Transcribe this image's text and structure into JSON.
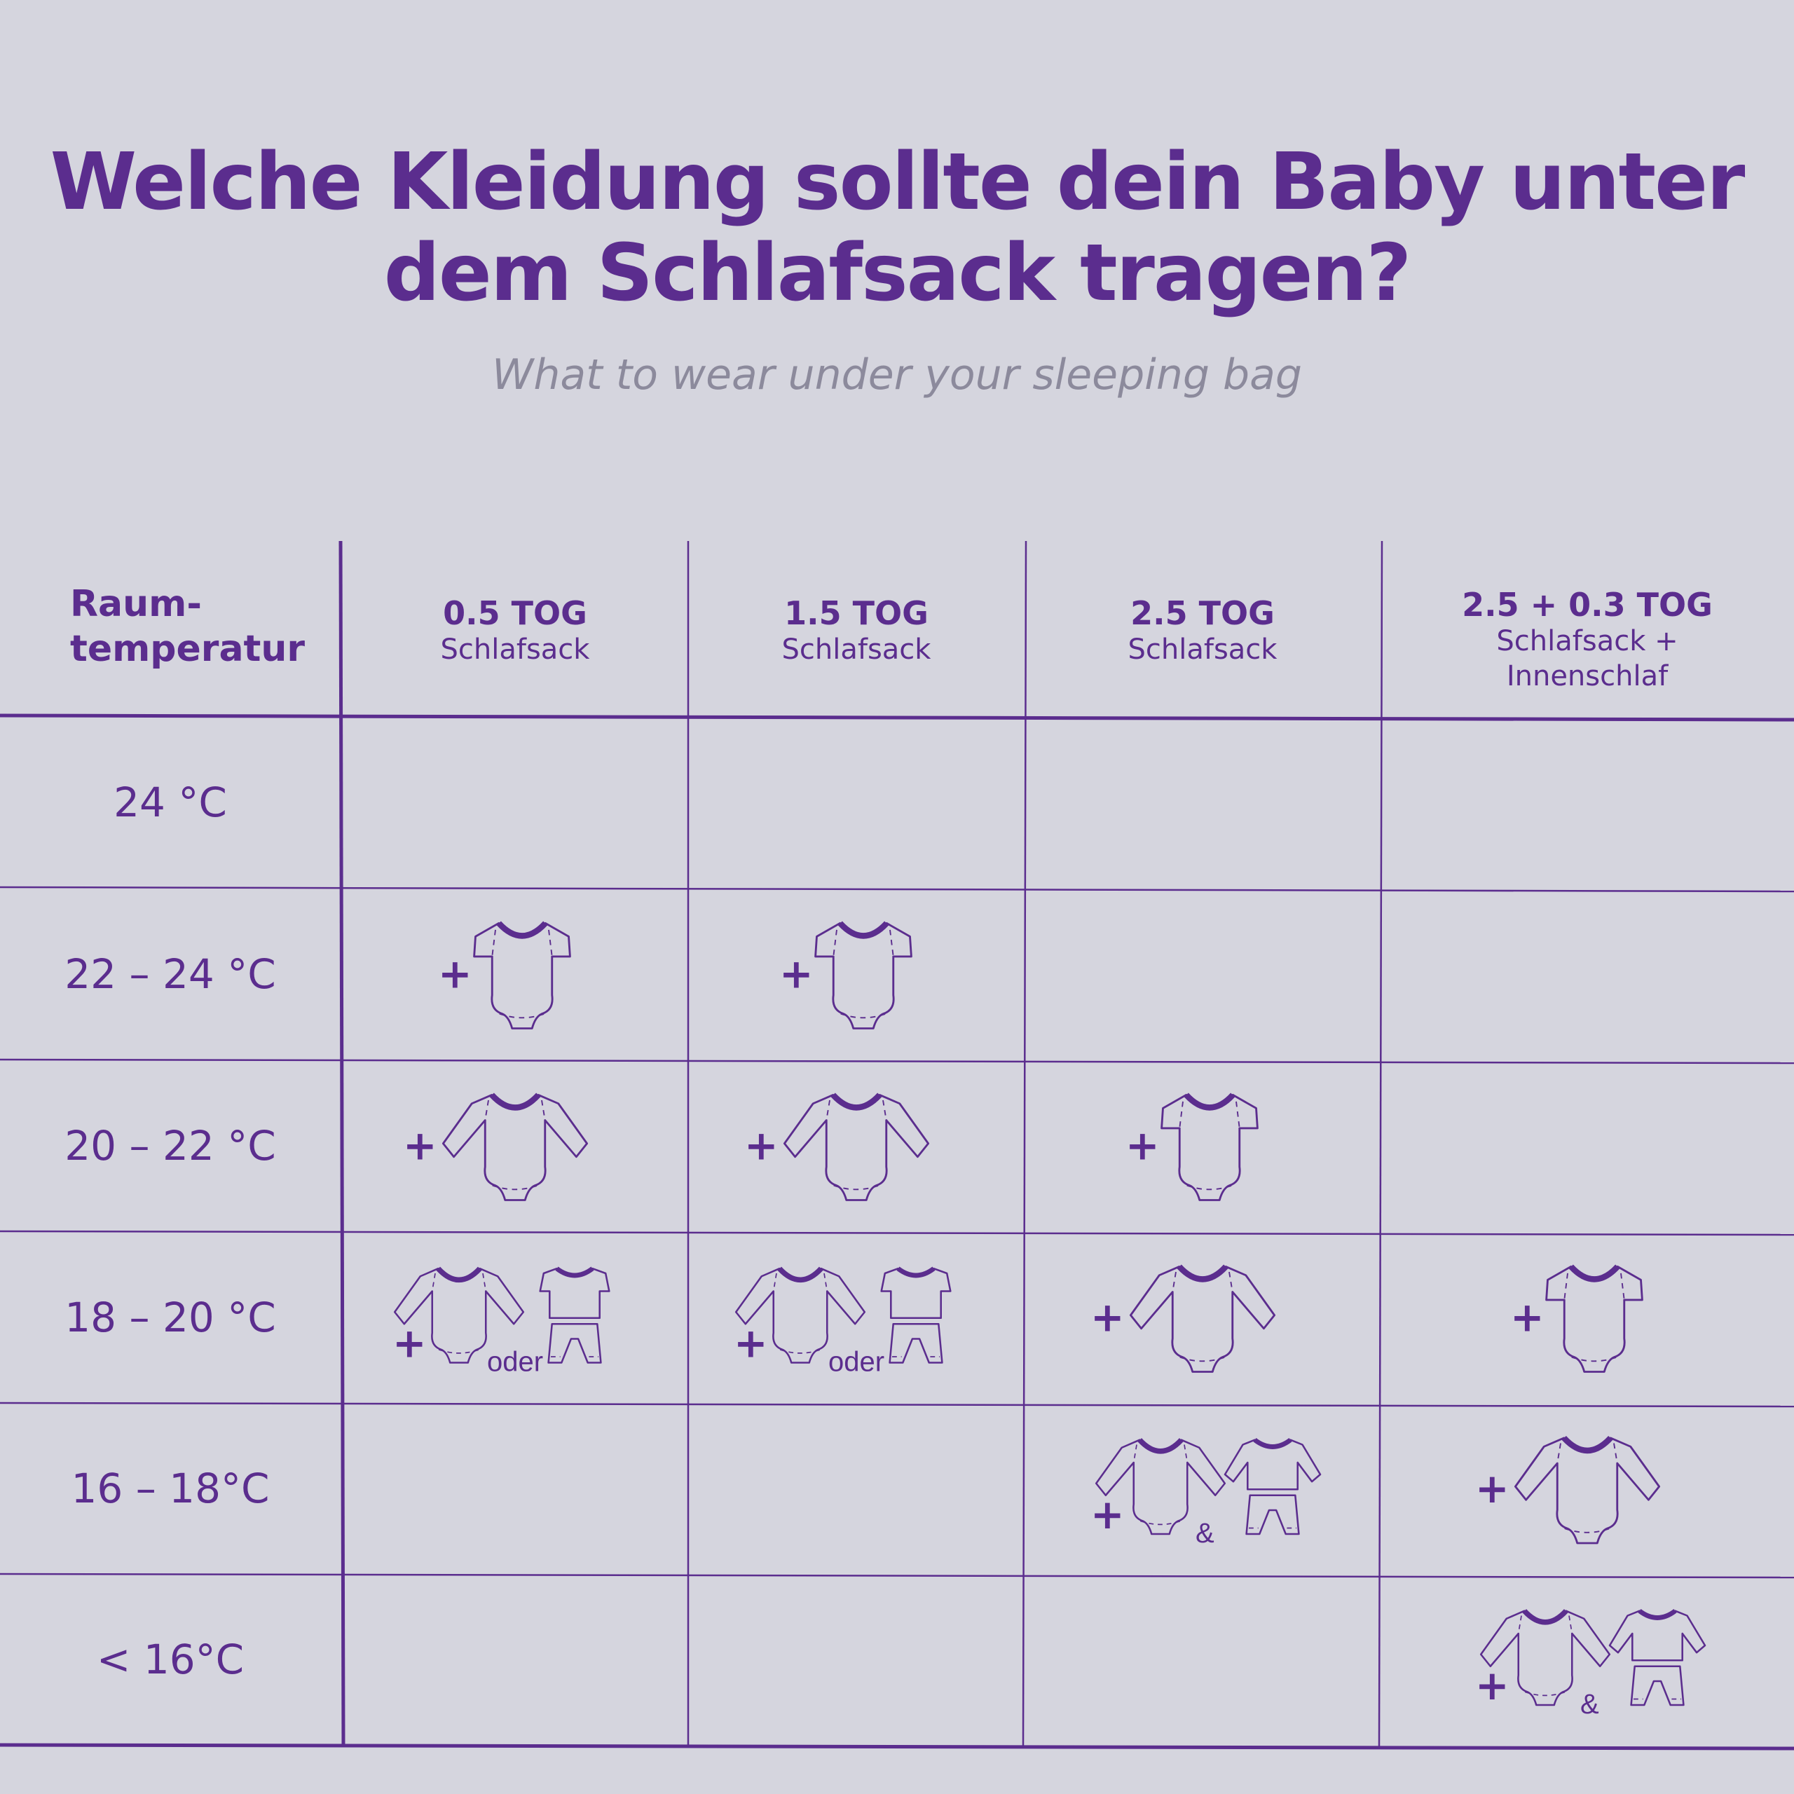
{
  "title_line1": "Welche Kleidung sollte dein Baby unter",
  "title_line2": "dem Schlafsack tragen?",
  "subtitle": "What to wear under your sleeping bag",
  "row_header_line1": "Raum-",
  "row_header_line2": "temperatur",
  "columns": [
    {
      "tog": "0.5 TOG",
      "label": "Schlafsack",
      "label2": ""
    },
    {
      "tog": "1.5 TOG",
      "label": "Schlafsack",
      "label2": ""
    },
    {
      "tog": "2.5 TOG",
      "label": "Schlafsack",
      "label2": ""
    },
    {
      "tog": "2.5 + 0.3 TOG",
      "label": "Schlafsack +",
      "label2": "Innenschlaf"
    }
  ],
  "rows": [
    {
      "temp": "24 °C",
      "cells": [
        "",
        "",
        "",
        ""
      ]
    },
    {
      "temp": "22 – 24 °C",
      "cells": [
        "short-sleeve-bodysuit",
        "short-sleeve-bodysuit",
        "",
        ""
      ]
    },
    {
      "temp": "20 – 22 °C",
      "cells": [
        "long-sleeve-bodysuit",
        "long-sleeve-bodysuit",
        "short-sleeve-bodysuit",
        ""
      ]
    },
    {
      "temp": "18 – 20 °C",
      "cells": [
        "long-sleeve-bodysuit-or-pyjamas",
        "long-sleeve-bodysuit-or-pyjamas",
        "long-sleeve-bodysuit",
        "short-sleeve-bodysuit"
      ]
    },
    {
      "temp": "16 – 18°C",
      "cells": [
        "",
        "",
        "long-sleeve-bodysuit-and-pyjamas",
        "long-sleeve-bodysuit"
      ]
    },
    {
      "temp": "< 16°C",
      "cells": [
        "",
        "",
        "",
        "long-sleeve-bodysuit-and-pyjamas"
      ]
    }
  ],
  "word_or": "oder",
  "word_and": "&",
  "plus_sign": "+",
  "colors": {
    "background": "#d5d5de",
    "accent": "#5b2d8e",
    "subtitle": "#8c8a9c"
  }
}
